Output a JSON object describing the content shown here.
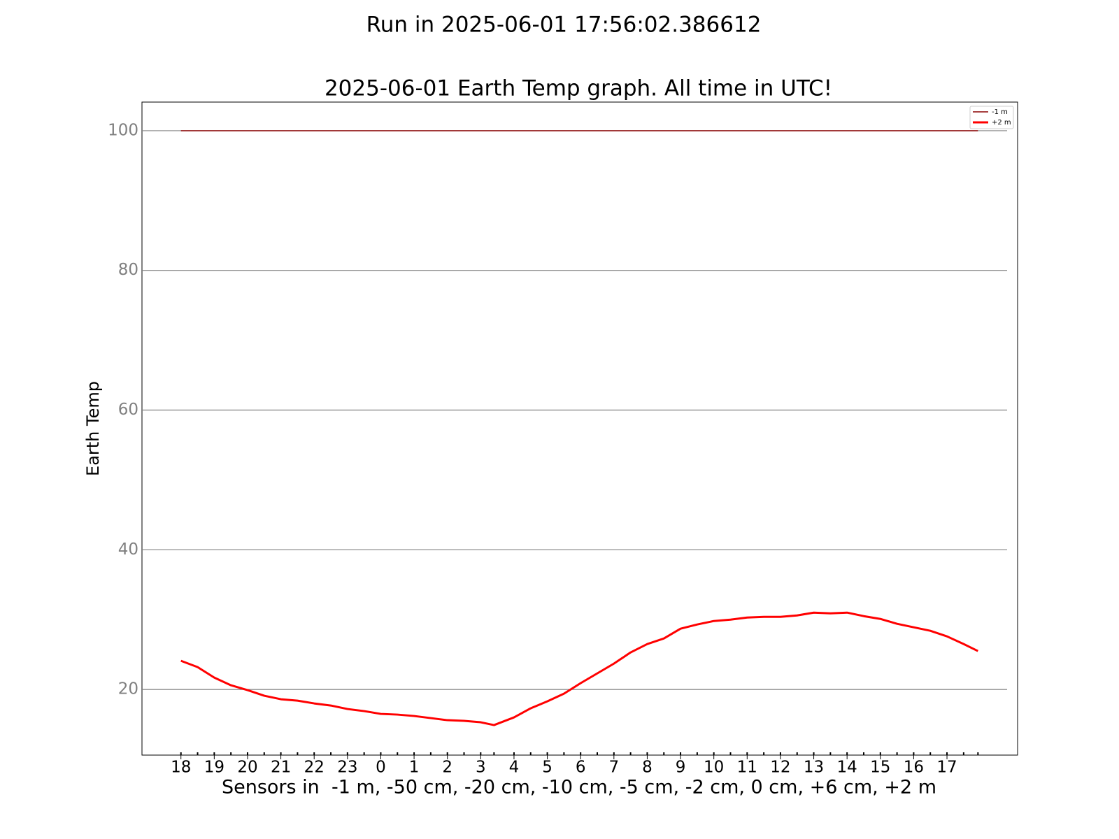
{
  "chart_data": {
    "type": "line",
    "suptitle": "Run in 2025-06-01 17:56:02.386612",
    "title": "2025-06-01 Earth Temp graph. All time in UTC!",
    "ylabel": "Earth Temp",
    "xlabel": "Sensors in  -1 m, -50 cm, -20 cm, -10 cm, -5 cm, -2 cm, 0 cm, +6 cm, +2 m",
    "x": [
      0,
      0.5,
      1,
      1.5,
      2,
      2.5,
      3,
      3.5,
      4,
      4.5,
      5,
      5.5,
      6,
      6.5,
      7,
      7.5,
      8,
      8.5,
      9,
      9.4,
      10,
      10.5,
      11,
      11.5,
      12,
      12.5,
      13,
      13.5,
      14,
      14.5,
      15,
      15.5,
      16,
      16.5,
      17,
      17.5,
      18,
      18.5,
      19,
      19.5,
      20,
      20.5,
      21,
      21.5,
      22,
      22.5,
      23,
      23.5,
      23.93
    ],
    "series": [
      {
        "name": "-1 m",
        "color": "#8b0000",
        "width": 1.5,
        "values": [
          100,
          100,
          100,
          100,
          100,
          100,
          100,
          100,
          100,
          100,
          100,
          100,
          100,
          100,
          100,
          100,
          100,
          100,
          100,
          100,
          100,
          100,
          100,
          100,
          100,
          100,
          100,
          100,
          100,
          100,
          100,
          100,
          100,
          100,
          100,
          100,
          100,
          100,
          100,
          100,
          100,
          100,
          100,
          100,
          100,
          100,
          100,
          100,
          100
        ]
      },
      {
        "name": "+2 m",
        "color": "#ff0000",
        "width": 3,
        "values": [
          24.1,
          23.2,
          21.7,
          20.6,
          19.9,
          19.1,
          18.6,
          18.4,
          18.0,
          17.7,
          17.2,
          16.9,
          16.5,
          16.4,
          16.2,
          15.9,
          15.6,
          15.5,
          15.3,
          14.9,
          16.0,
          17.3,
          18.3,
          19.4,
          20.9,
          22.3,
          23.7,
          25.3,
          26.5,
          27.3,
          28.7,
          29.3,
          29.8,
          30.0,
          30.3,
          30.4,
          30.4,
          30.6,
          31.0,
          30.9,
          31.0,
          30.5,
          30.1,
          29.4,
          28.9,
          28.4,
          27.6,
          26.5,
          25.5
        ]
      }
    ],
    "xlim": [
      -1.17,
      25.12
    ],
    "xticks": [
      {
        "value": 0,
        "label": "18"
      },
      {
        "value": 1,
        "label": "19"
      },
      {
        "value": 2,
        "label": "20"
      },
      {
        "value": 3,
        "label": "21"
      },
      {
        "value": 4,
        "label": "22"
      },
      {
        "value": 5,
        "label": "23"
      },
      {
        "value": 6,
        "label": "0"
      },
      {
        "value": 7,
        "label": "1"
      },
      {
        "value": 8,
        "label": "2"
      },
      {
        "value": 9,
        "label": "3"
      },
      {
        "value": 10,
        "label": "4"
      },
      {
        "value": 11,
        "label": "5"
      },
      {
        "value": 12,
        "label": "6"
      },
      {
        "value": 13,
        "label": "7"
      },
      {
        "value": 14,
        "label": "8"
      },
      {
        "value": 15,
        "label": "9"
      },
      {
        "value": 16,
        "label": "10"
      },
      {
        "value": 17,
        "label": "11"
      },
      {
        "value": 18,
        "label": "12"
      },
      {
        "value": 19,
        "label": "13"
      },
      {
        "value": 20,
        "label": "14"
      },
      {
        "value": 21,
        "label": "15"
      },
      {
        "value": 22,
        "label": "16"
      },
      {
        "value": 23,
        "label": "17"
      }
    ],
    "ylim": [
      10.6,
      104.1
    ],
    "yticks": [
      20,
      40,
      60,
      80,
      100
    ],
    "grid": true,
    "legend": "upper right"
  }
}
